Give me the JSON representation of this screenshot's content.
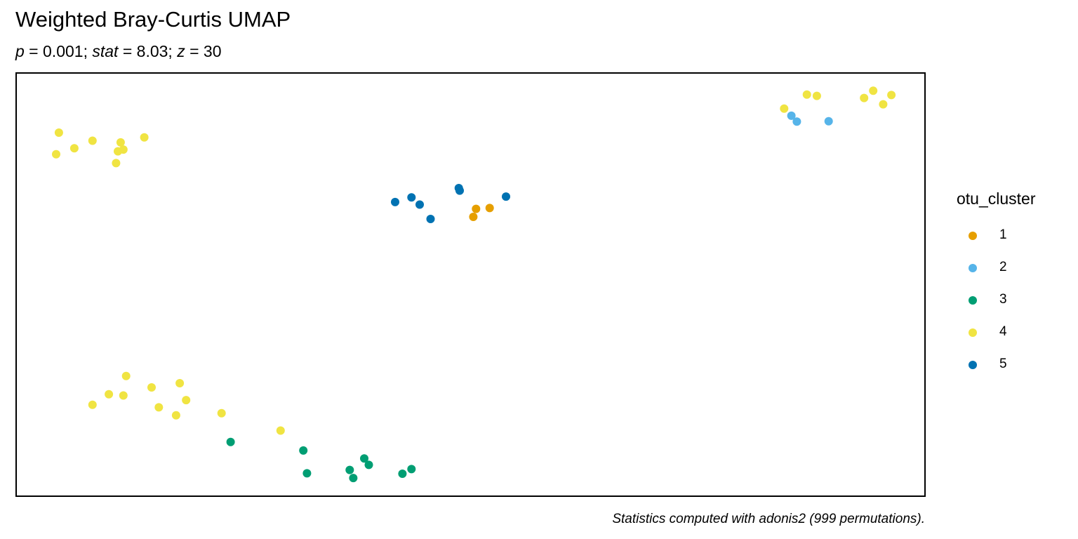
{
  "chart_data": {
    "type": "scatter",
    "title": "Weighted Bray-Curtis UMAP",
    "subtitle": {
      "p_label": "p",
      "p_value": " = 0.001; ",
      "stat_label": "stat",
      "stat_value": " = 8.03; ",
      "z_label": "z",
      "z_value": " = 30"
    },
    "caption": "Statistics computed with adonis2 (999 permutations).",
    "xlabel": "",
    "ylabel": "",
    "axes_visible": false,
    "grid": false,
    "xlim": [
      0,
      100
    ],
    "ylim": [
      0,
      100
    ],
    "legend": {
      "title": "otu_cluster",
      "position": "right",
      "entries": [
        {
          "label": "1",
          "color": "#E69F00"
        },
        {
          "label": "2",
          "color": "#56B4E9"
        },
        {
          "label": "3",
          "color": "#009E73"
        },
        {
          "label": "4",
          "color": "#F0E442"
        },
        {
          "label": "5",
          "color": "#0072B2"
        }
      ]
    },
    "series": [
      {
        "name": "1",
        "color": "#E69F00",
        "points": [
          [
            50.6,
            67.9
          ],
          [
            50.3,
            66.0
          ],
          [
            52.1,
            68.1
          ]
        ]
      },
      {
        "name": "2",
        "color": "#56B4E9",
        "points": [
          [
            85.3,
            89.9
          ],
          [
            85.9,
            88.5
          ],
          [
            89.4,
            88.6
          ]
        ]
      },
      {
        "name": "3",
        "color": "#009E73",
        "points": [
          [
            23.6,
            12.8
          ],
          [
            31.6,
            10.8
          ],
          [
            32.0,
            5.4
          ],
          [
            36.7,
            6.2
          ],
          [
            37.1,
            4.3
          ],
          [
            38.3,
            8.9
          ],
          [
            38.8,
            7.4
          ],
          [
            42.5,
            5.3
          ],
          [
            43.5,
            6.4
          ]
        ]
      },
      {
        "name": "4",
        "color": "#F0E442",
        "points": [
          [
            4.4,
            80.8
          ],
          [
            4.7,
            85.9
          ],
          [
            6.4,
            82.2
          ],
          [
            8.4,
            84.0
          ],
          [
            11.0,
            78.7
          ],
          [
            11.2,
            81.5
          ],
          [
            11.5,
            83.6
          ],
          [
            11.8,
            81.9
          ],
          [
            14.1,
            84.8
          ],
          [
            84.5,
            91.6
          ],
          [
            87.0,
            94.9
          ],
          [
            88.1,
            94.6
          ],
          [
            93.3,
            94.1
          ],
          [
            94.3,
            95.8
          ],
          [
            95.4,
            92.6
          ],
          [
            96.3,
            94.8
          ],
          [
            8.4,
            21.6
          ],
          [
            10.2,
            24.1
          ],
          [
            11.8,
            23.8
          ],
          [
            12.1,
            28.4
          ],
          [
            14.9,
            25.7
          ],
          [
            15.7,
            21.0
          ],
          [
            17.6,
            19.1
          ],
          [
            18.0,
            26.7
          ],
          [
            18.7,
            22.7
          ],
          [
            22.6,
            19.6
          ],
          [
            29.1,
            15.5
          ]
        ]
      },
      {
        "name": "5",
        "color": "#0072B2",
        "points": [
          [
            41.7,
            69.5
          ],
          [
            43.5,
            70.6
          ],
          [
            44.4,
            68.9
          ],
          [
            45.6,
            65.5
          ],
          [
            48.7,
            72.8
          ],
          [
            48.8,
            72.2
          ],
          [
            53.9,
            70.8
          ]
        ]
      }
    ]
  }
}
